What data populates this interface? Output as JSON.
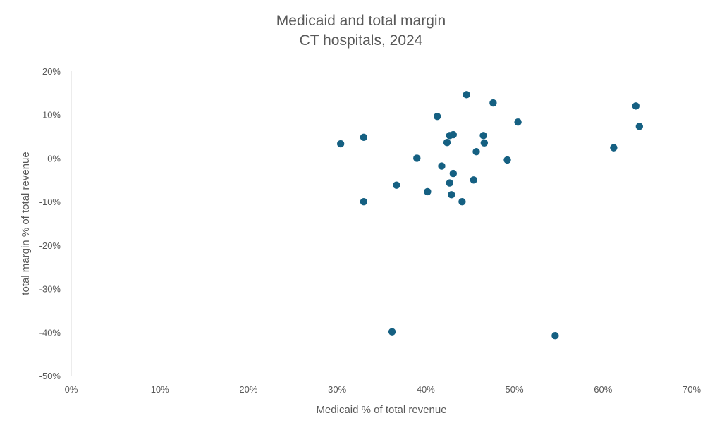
{
  "chart_data": {
    "type": "scatter",
    "title": "Medicaid and total margin",
    "subtitle": "CT hospitals, 2024",
    "xlabel": "Medicaid % of total revenue",
    "ylabel": "total margin % of total revenue",
    "xlim": [
      0,
      70
    ],
    "ylim": [
      -50,
      20
    ],
    "xticks": [
      "0%",
      "10%",
      "20%",
      "30%",
      "40%",
      "50%",
      "60%",
      "70%"
    ],
    "yticks": [
      "20%",
      "10%",
      "0%",
      "-10%",
      "-20%",
      "-30%",
      "-40%",
      "-50%"
    ],
    "grid": false,
    "marker_color": "#156082",
    "points": [
      [
        44.6,
        14.6
      ],
      [
        47.6,
        12.7
      ],
      [
        41.3,
        9.6
      ],
      [
        50.4,
        8.3
      ],
      [
        30.4,
        3.3
      ],
      [
        33.0,
        4.8
      ],
      [
        42.7,
        5.2
      ],
      [
        43.1,
        5.4
      ],
      [
        46.5,
        5.2
      ],
      [
        42.4,
        3.6
      ],
      [
        46.6,
        3.5
      ],
      [
        45.7,
        1.5
      ],
      [
        39.0,
        0.0
      ],
      [
        49.2,
        -0.4
      ],
      [
        41.8,
        -1.8
      ],
      [
        43.1,
        -3.5
      ],
      [
        45.4,
        -5.0
      ],
      [
        42.7,
        -5.7
      ],
      [
        36.7,
        -6.2
      ],
      [
        40.2,
        -7.7
      ],
      [
        42.9,
        -8.4
      ],
      [
        33.0,
        -10.0
      ],
      [
        44.1,
        -10.0
      ],
      [
        63.7,
        12.0
      ],
      [
        64.1,
        7.3
      ],
      [
        61.2,
        2.4
      ],
      [
        36.2,
        -39.9
      ],
      [
        54.6,
        -40.8
      ]
    ]
  }
}
